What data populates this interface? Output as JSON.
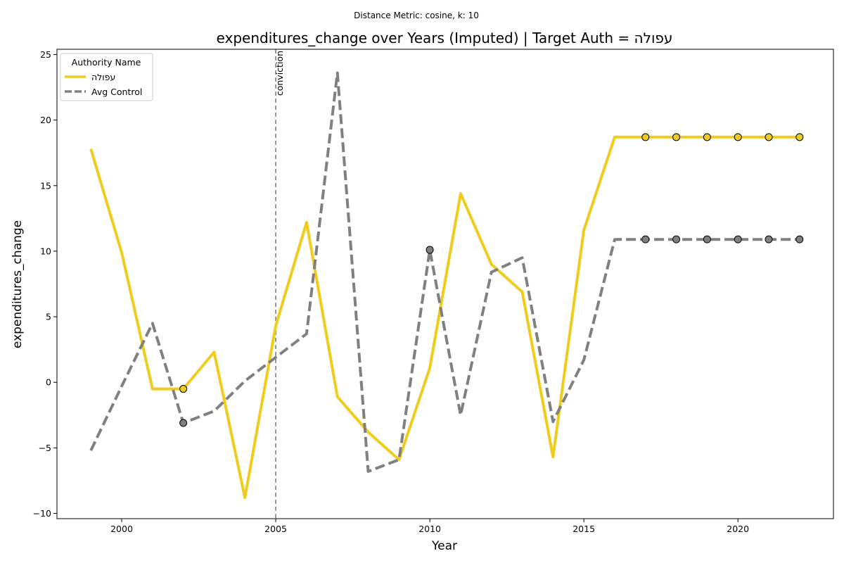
{
  "figure": {
    "suptitle": "Distance Metric: cosine, k: 10"
  },
  "chart_data": {
    "type": "line",
    "title": "expenditures_change over Years (Imputed) | Target Auth = עפולה",
    "xlabel": "Year",
    "ylabel": "expenditures_change",
    "xlim": [
      1997.9,
      2023.1
    ],
    "ylim": [
      -10.4,
      25.4
    ],
    "x_ticks": [
      2000,
      2005,
      2010,
      2015,
      2020
    ],
    "y_ticks": [
      -10,
      -5,
      0,
      5,
      10,
      15,
      20,
      25
    ],
    "grid": false,
    "legend": {
      "title": "Authority Name",
      "position": "top-left"
    },
    "x": [
      1999,
      2000,
      2001,
      2002,
      2003,
      2004,
      2005,
      2006,
      2007,
      2008,
      2009,
      2010,
      2011,
      2012,
      2013,
      2014,
      2015,
      2016,
      2017,
      2018,
      2019,
      2020,
      2021,
      2022
    ],
    "series": [
      {
        "name": "עפולה",
        "color": "#f0cc1e",
        "style": "solid",
        "values": [
          17.8,
          9.9,
          -0.5,
          -0.5,
          2.3,
          -8.8,
          4.3,
          12.2,
          -1.1,
          -3.8,
          -5.9,
          1.1,
          14.4,
          9.0,
          6.9,
          -5.7,
          11.6,
          18.7,
          18.7,
          18.7,
          18.7,
          18.7,
          18.7,
          18.7
        ],
        "imputed_x": [
          2002,
          2017,
          2018,
          2019,
          2020,
          2021,
          2022
        ]
      },
      {
        "name": "Avg Control",
        "color": "#808080",
        "style": "dashed",
        "values": [
          -5.2,
          -0.3,
          4.5,
          -3.1,
          -2.2,
          0.1,
          1.9,
          3.7,
          23.6,
          -6.8,
          -5.9,
          10.1,
          -2.5,
          8.4,
          9.5,
          -3.0,
          1.7,
          10.9,
          10.9,
          10.9,
          10.9,
          10.9,
          10.9,
          10.9
        ],
        "imputed_x": [
          2002,
          2010,
          2017,
          2018,
          2019,
          2020,
          2021,
          2022
        ]
      }
    ],
    "annotations": [
      {
        "type": "vline",
        "x": 2005,
        "label": "conviction",
        "color": "#808080"
      }
    ]
  }
}
